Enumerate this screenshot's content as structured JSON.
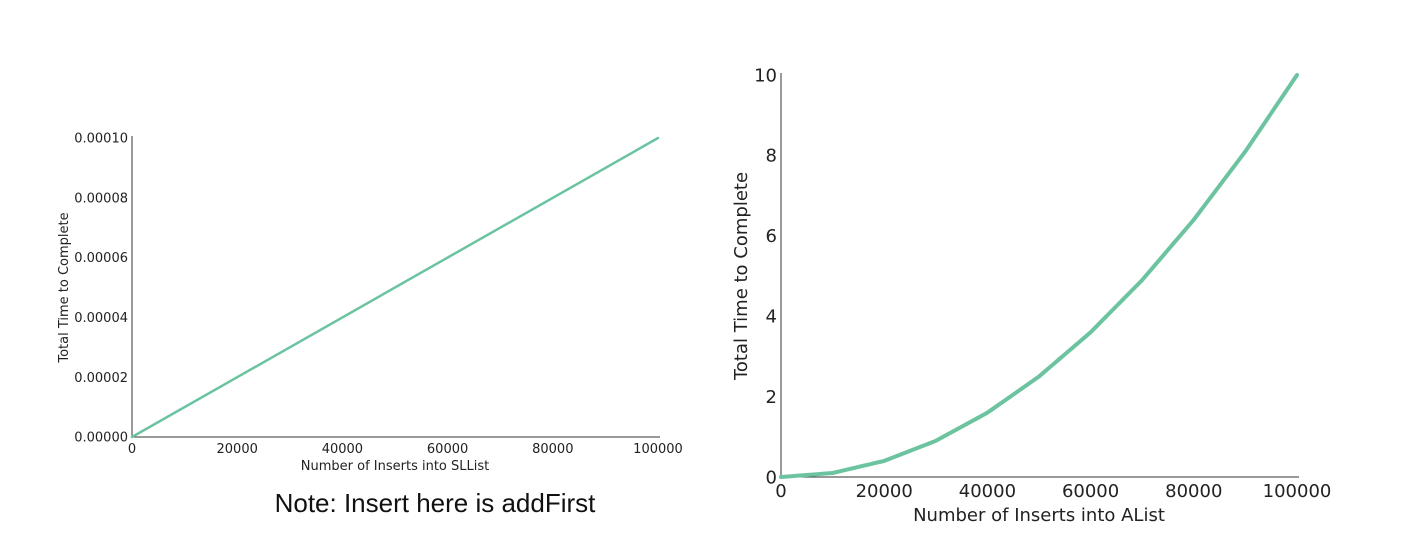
{
  "note": "Note: Insert here is addFirst",
  "line_color": "#6cc3a0",
  "chart_data": [
    {
      "type": "line",
      "xlabel": "Number of Inserts into SLList",
      "ylabel": "Total Time to Complete",
      "xlim": [
        0,
        100000
      ],
      "ylim": [
        0,
        0.0001
      ],
      "x_ticks": [
        "0",
        "20000",
        "40000",
        "60000",
        "80000",
        "100000"
      ],
      "y_ticks": [
        "0.00000",
        "0.00002",
        "0.00004",
        "0.00006",
        "0.00008",
        "0.00010"
      ],
      "series": [
        {
          "x": [
            0,
            100000
          ],
          "y": [
            0,
            0.0001
          ]
        }
      ]
    },
    {
      "type": "line",
      "xlabel": "Number of Inserts into AList",
      "ylabel": "Total Time to Complete",
      "xlim": [
        0,
        100000
      ],
      "ylim": [
        0,
        10
      ],
      "x_ticks": [
        "0",
        "20000",
        "40000",
        "60000",
        "80000",
        "100000"
      ],
      "y_ticks": [
        "0",
        "2",
        "4",
        "6",
        "8",
        "10"
      ],
      "series": [
        {
          "x": [
            0,
            10000,
            20000,
            30000,
            40000,
            50000,
            60000,
            70000,
            80000,
            90000,
            100000
          ],
          "y": [
            0,
            0.1,
            0.4,
            0.9,
            1.6,
            2.5,
            3.6,
            4.9,
            6.4,
            8.1,
            10
          ]
        }
      ]
    }
  ]
}
